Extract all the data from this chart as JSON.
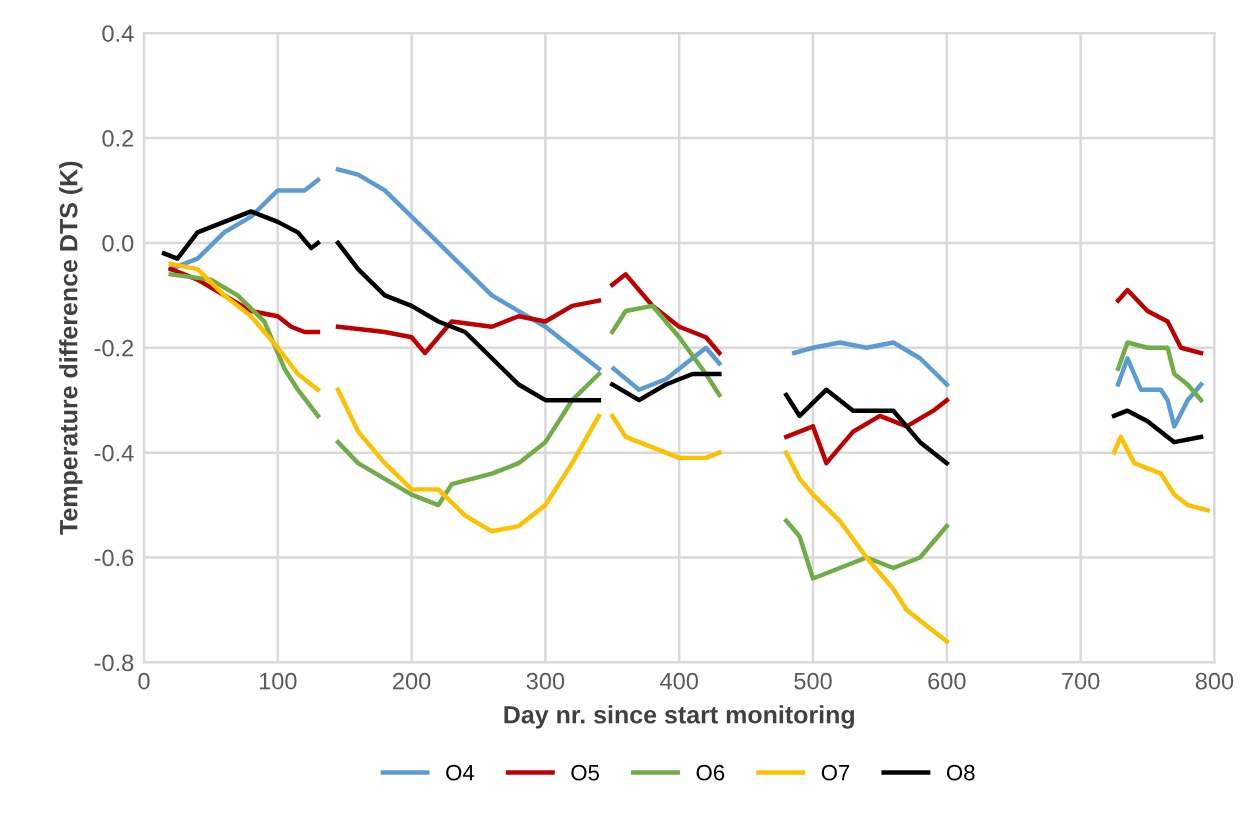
{
  "chart_data": {
    "type": "line",
    "xlabel": "Day nr. since start monitoring",
    "ylabel": "Temperature difference DTS (K)",
    "xlim": [
      0,
      800
    ],
    "xticks": [
      0,
      100,
      200,
      300,
      400,
      500,
      600,
      700,
      800
    ],
    "ylim": [
      -0.8,
      0.4
    ],
    "yticks": [
      -0.8,
      -0.6,
      -0.4,
      -0.2,
      {
        "value": 0,
        "label": "0.0"
      },
      0.2,
      0.4
    ],
    "grid": true,
    "legend": "bottom",
    "line_style": "solid",
    "marker": "none",
    "series": [
      {
        "name": "O4",
        "color": "#5b9bd5",
        "x": [
          20,
          40,
          60,
          80,
          100,
          120,
          130,
          138,
          145,
          160,
          180,
          200,
          220,
          240,
          260,
          280,
          300,
          320,
          340,
          345,
          351,
          370,
          390,
          410,
          420,
          430,
          455,
          486,
          500,
          520,
          540,
          560,
          580,
          600,
          660,
          728,
          735,
          745,
          760,
          765,
          770,
          780,
          790
        ],
        "values": [
          -0.05,
          -0.03,
          0.02,
          0.05,
          0.1,
          0.1,
          0.12,
          null,
          0.14,
          0.13,
          0.1,
          0.05,
          0.0,
          -0.05,
          -0.1,
          -0.13,
          -0.16,
          -0.2,
          -0.24,
          null,
          -0.24,
          -0.28,
          -0.26,
          -0.22,
          -0.2,
          -0.23,
          null,
          -0.21,
          -0.2,
          -0.19,
          -0.2,
          -0.19,
          -0.22,
          -0.27,
          null,
          -0.27,
          -0.22,
          -0.28,
          -0.28,
          -0.3,
          -0.35,
          -0.3,
          -0.27
        ]
      },
      {
        "name": "O5",
        "color": "#c00000",
        "x": [
          20,
          40,
          60,
          80,
          100,
          110,
          120,
          130,
          138,
          145,
          180,
          200,
          210,
          230,
          260,
          280,
          300,
          320,
          340,
          345,
          350,
          360,
          380,
          400,
          420,
          430,
          455,
          480,
          500,
          510,
          530,
          550,
          570,
          590,
          600,
          660,
          728,
          735,
          750,
          765,
          775,
          790
        ],
        "values": [
          -0.05,
          -0.07,
          -0.1,
          -0.13,
          -0.14,
          -0.16,
          -0.17,
          -0.17,
          null,
          -0.16,
          -0.17,
          -0.18,
          -0.21,
          -0.15,
          -0.16,
          -0.14,
          -0.15,
          -0.12,
          -0.11,
          null,
          -0.08,
          -0.06,
          -0.12,
          -0.16,
          -0.18,
          -0.21,
          null,
          -0.37,
          -0.35,
          -0.42,
          -0.36,
          -0.33,
          -0.35,
          -0.32,
          -0.3,
          null,
          -0.11,
          -0.09,
          -0.13,
          -0.15,
          -0.2,
          -0.21
        ]
      },
      {
        "name": "O6",
        "color": "#70ad47",
        "x": [
          20,
          50,
          70,
          90,
          105,
          115,
          130,
          138,
          145,
          160,
          180,
          200,
          220,
          230,
          260,
          280,
          300,
          320,
          340,
          345,
          350,
          360,
          380,
          400,
          420,
          430,
          455,
          480,
          490,
          500,
          520,
          540,
          560,
          580,
          600,
          660,
          728,
          735,
          750,
          765,
          770,
          780,
          790
        ],
        "values": [
          -0.06,
          -0.07,
          -0.1,
          -0.15,
          -0.24,
          -0.28,
          -0.33,
          null,
          -0.38,
          -0.42,
          -0.45,
          -0.48,
          -0.5,
          -0.46,
          -0.44,
          -0.42,
          -0.38,
          -0.3,
          -0.25,
          null,
          -0.17,
          -0.13,
          -0.12,
          -0.18,
          -0.25,
          -0.29,
          null,
          -0.53,
          -0.56,
          -0.64,
          -0.62,
          -0.6,
          -0.62,
          -0.6,
          -0.54,
          null,
          -0.24,
          -0.19,
          -0.2,
          -0.2,
          -0.25,
          -0.27,
          -0.3
        ]
      },
      {
        "name": "O7",
        "color": "#ffc000",
        "x": [
          20,
          40,
          60,
          80,
          100,
          115,
          130,
          138,
          145,
          160,
          180,
          200,
          220,
          240,
          260,
          280,
          300,
          320,
          340,
          345,
          350,
          360,
          380,
          400,
          420,
          430,
          455,
          480,
          490,
          500,
          520,
          540,
          560,
          570,
          580,
          600,
          660,
          725,
          730,
          740,
          760,
          770,
          780,
          795
        ],
        "values": [
          -0.04,
          -0.05,
          -0.1,
          -0.14,
          -0.2,
          -0.25,
          -0.28,
          null,
          -0.28,
          -0.36,
          -0.42,
          -0.47,
          -0.47,
          -0.52,
          -0.55,
          -0.54,
          -0.5,
          -0.42,
          -0.33,
          null,
          -0.33,
          -0.37,
          -0.39,
          -0.41,
          -0.41,
          -0.4,
          null,
          -0.4,
          -0.45,
          -0.48,
          -0.53,
          -0.6,
          -0.66,
          -0.7,
          -0.72,
          -0.76,
          null,
          -0.4,
          -0.37,
          -0.42,
          -0.44,
          -0.48,
          -0.5,
          -0.51
        ]
      },
      {
        "name": "O8",
        "color": "#000000",
        "x": [
          15,
          25,
          40,
          60,
          80,
          100,
          115,
          125,
          130,
          138,
          145,
          160,
          180,
          200,
          220,
          240,
          260,
          280,
          300,
          320,
          340,
          345,
          350,
          370,
          390,
          410,
          430,
          455,
          480,
          490,
          510,
          530,
          560,
          580,
          600,
          660,
          725,
          735,
          750,
          770,
          790
        ],
        "values": [
          -0.02,
          -0.03,
          0.02,
          0.04,
          0.06,
          0.04,
          0.02,
          -0.01,
          0.0,
          null,
          0.0,
          -0.05,
          -0.1,
          -0.12,
          -0.15,
          -0.17,
          -0.22,
          -0.27,
          -0.3,
          -0.3,
          -0.3,
          null,
          -0.27,
          -0.3,
          -0.27,
          -0.25,
          -0.25,
          null,
          -0.29,
          -0.33,
          -0.28,
          -0.32,
          -0.32,
          -0.38,
          -0.42,
          null,
          -0.33,
          -0.32,
          -0.34,
          -0.38,
          -0.37
        ]
      }
    ]
  }
}
